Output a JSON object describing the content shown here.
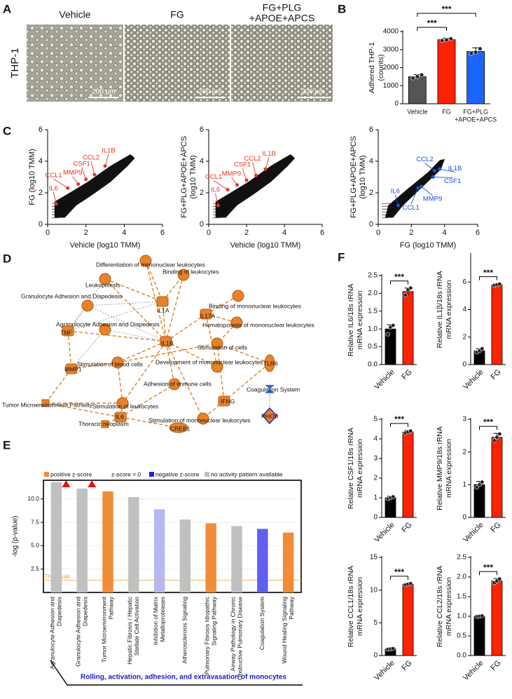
{
  "panel_labels": [
    "A",
    "B",
    "C",
    "D",
    "E",
    "F"
  ],
  "panel_a": {
    "row_label": "THP-1",
    "images": [
      {
        "title": [
          "Vehicle"
        ],
        "scale_bar": "200 µm"
      },
      {
        "title": [
          "FG"
        ],
        "scale_bar": "200 µm"
      },
      {
        "title": [
          "FG+PLG",
          "+APOE+APCS"
        ],
        "scale_bar": "200 µm"
      }
    ]
  },
  "network": {
    "nodes": [
      "Differentiation of mononuclear leukocytes",
      "Leukopoiesis",
      "Binding of leukocytes",
      "Granulocyte Adhesion and Diapedesis",
      "IL1A",
      "Binding of mononuclear leukocytes",
      "IL17A",
      "Hematopoiesis of mononuclear leukocytes",
      "Agranulocyte Adhesion and Diapedesis",
      "TNF",
      "IL1B",
      "Stimulation of cells",
      "MMP1",
      "Stimulation of blood cells",
      "Development of mononuclear leukocytes",
      "TLR6",
      "Adhesion of immune cells",
      "Coagulation System",
      "Tumor Microenvironment Pathway",
      "IFNG",
      "Stimulation of leukocytes",
      "IL6",
      "Stimulation of mononuclear leukocytes",
      "RHOB",
      "Thoracic neoplasm",
      "CREB1"
    ]
  },
  "chart_data": [
    {
      "type": "bar",
      "y_label": [
        "Adhered THP-1",
        "(counts)"
      ],
      "categories": [
        [
          "Vehicle"
        ],
        [
          "FG"
        ],
        [
          "FG+PLG",
          "+APOE+APCS"
        ]
      ],
      "values": [
        1500,
        3550,
        2900
      ],
      "errors": [
        110,
        80,
        200
      ],
      "points": [
        [
          1420,
          1500,
          1600
        ],
        [
          3500,
          3530,
          3600
        ],
        [
          2780,
          2850,
          3050
        ]
      ],
      "colors": [
        "#555555",
        "#ff2200",
        "#1a66ff"
      ],
      "ylim": [
        0,
        4000
      ],
      "yticks": [
        0,
        1000,
        2000,
        3000,
        4000
      ],
      "brackets": [
        "***",
        "***"
      ]
    },
    {
      "type": "scatter",
      "x_label": "Vehicle (log10 TMM)",
      "y_label": [
        "FG (log10 TMM)"
      ],
      "xlim": [
        0,
        6
      ],
      "ylim": [
        0,
        6
      ],
      "xticks": [
        0,
        2,
        4,
        6
      ],
      "yticks": [
        0,
        2,
        4,
        6
      ],
      "color": "#e8351e",
      "labels": [
        "IL1B",
        "CCL2",
        "CSF1",
        "MMP9",
        "CCL1",
        "IL6"
      ],
      "x": [
        3.0,
        2.45,
        2.0,
        1.6,
        1.05,
        0.45
      ],
      "y": [
        3.7,
        3.15,
        2.85,
        2.55,
        2.3,
        1.3
      ]
    },
    {
      "type": "scatter",
      "x_label": "Vehicle (log10 TMM)",
      "y_label": [
        "FG+PLG+APOE+APCS",
        "(log10 TMM)"
      ],
      "xlim": [
        0,
        6
      ],
      "ylim": [
        0,
        6
      ],
      "xticks": [
        0,
        2,
        4,
        6
      ],
      "yticks": [
        0,
        2,
        4,
        6
      ],
      "color": "#e8351e",
      "labels": [
        "IL1B",
        "CCL2",
        "CSF1",
        "MMP9",
        "CCL1",
        "IL6"
      ],
      "x": [
        3.0,
        2.5,
        2.0,
        1.5,
        1.0,
        0.5
      ],
      "y": [
        3.5,
        3.1,
        2.8,
        2.5,
        2.2,
        1.2
      ]
    },
    {
      "type": "scatter",
      "x_label": "FG (log10 TMM)",
      "y_label": [
        "FG+PLG+APOE+APCS",
        "(log10 TMM)"
      ],
      "xlim": [
        0,
        6
      ],
      "ylim": [
        0,
        6
      ],
      "xticks": [
        0,
        2,
        4,
        6
      ],
      "yticks": [
        0,
        2,
        4,
        6
      ],
      "color": "#1a4fe0",
      "labels": [
        "IL1B",
        "CCL2",
        "CSF1",
        "MMP9",
        "CCL1",
        "IL6"
      ],
      "x": [
        3.7,
        3.4,
        3.3,
        2.6,
        2.4,
        1.2
      ],
      "y": [
        3.5,
        3.4,
        3.0,
        2.4,
        2.3,
        1.2
      ]
    },
    {
      "type": "bar",
      "y_label": "-log (p-value)",
      "legend": [
        {
          "name": "positive z-score",
          "color": "#f08c3a"
        },
        {
          "name": "z-score = 0",
          "color": "#ffffff"
        },
        {
          "name": "negative z-score",
          "color": "#2222dd"
        },
        {
          "name": "no activity pattern available",
          "color": "#c0c0c0"
        }
      ],
      "categories": [
        [
          "Agranulocyte Adhesion and",
          "Diapedesis"
        ],
        [
          "Granulocyte Adhesion and",
          "Diapedesis"
        ],
        [
          "Tumor Microenvironment",
          "Pathway"
        ],
        [
          "Hepatic Fibrosis / Hepatic",
          "Stellate Cell Activation"
        ],
        [
          "Inhibition of Matrix",
          "Metalloproteases"
        ],
        [
          "Atherosclerosis Signaling"
        ],
        [
          "Pulmonary Fibrosis Idiopathic",
          "Signaling Pathway"
        ],
        [
          "Airway Pathology in Chronic",
          "Obstructive Pulmonary Disease"
        ],
        [
          "Coagulation System"
        ],
        [
          "Wound Healing Signaling",
          "Pathway"
        ]
      ],
      "values": [
        11.8,
        11.1,
        10.8,
        10.2,
        8.9,
        7.8,
        7.4,
        7.1,
        6.8,
        6.4
      ],
      "colors": [
        "#c0c0c0",
        "#c0c0c0",
        "#f08c3a",
        "#c0c0c0",
        "#b8b8f0",
        "#c0c0c0",
        "#f08c3a",
        "#c0c0c0",
        "#6060f0",
        "#f08c3a"
      ],
      "ylim": [
        0,
        12
      ],
      "yticks": [
        2.5,
        {
          "value": 5,
          "label": "5.0"
        },
        7.5,
        {
          "value": 10,
          "label": "10.0"
        }
      ],
      "threshold": {
        "value": 1.3,
        "label": "Threshold"
      },
      "bracket_label": "Rolling, activation, adhesion, and extravasation of monocytes"
    },
    {
      "type": "bar",
      "y_label": [
        "Relative IL6/18s rRNA",
        "mRNA expression"
      ],
      "categories": [
        "Vehicle",
        "FG"
      ],
      "values": [
        1,
        2.05
      ],
      "errors": [
        0.12,
        0.1
      ],
      "points": [
        [
          0.85,
          1.05,
          1.1
        ],
        [
          1.95,
          2.1,
          2.15
        ]
      ],
      "colors": [
        "#000000",
        "#ff2200"
      ],
      "ylim": [
        0,
        2.5
      ],
      "yticks": [
        {
          "value": 0,
          "label": "0.0"
        },
        0.5,
        {
          "value": 1,
          "label": "1.0"
        },
        1.5,
        {
          "value": 2,
          "label": "2.0"
        },
        2.5
      ],
      "significance": "***"
    },
    {
      "type": "bar",
      "y_label": [
        "Relative IL1β/18s rRNA",
        "mRNA expression"
      ],
      "categories": [
        "Vehicle",
        "FG"
      ],
      "values": [
        1,
        5.8
      ],
      "errors": [
        0.15,
        0.08
      ],
      "points": [
        [
          0.9,
          1.0,
          1.15
        ],
        [
          5.75,
          5.8,
          5.85
        ]
      ],
      "colors": [
        "#000000",
        "#ff2200"
      ],
      "ylim": [
        0,
        8
      ],
      "yticks": [
        0,
        2,
        4,
        6
      ],
      "significance": "***"
    },
    {
      "type": "bar",
      "y_label": [
        "Relative CSF1/18s rRNA",
        "mRNA expression"
      ],
      "categories": [
        "Vehicle",
        "FG"
      ],
      "values": [
        1,
        4.35
      ],
      "errors": [
        0.08,
        0.08
      ],
      "points": [
        [
          0.95,
          1.0,
          1.05
        ],
        [
          4.3,
          4.35,
          4.4
        ]
      ],
      "colors": [
        "#000000",
        "#ff2200"
      ],
      "ylim": [
        0,
        5
      ],
      "yticks": [
        0,
        1,
        2,
        3,
        4,
        5
      ],
      "significance": "***"
    },
    {
      "type": "bar",
      "y_label": [
        "Relative MMP9/18s rRNA",
        "mRNA expression"
      ],
      "categories": [
        "Vehicle",
        "FG"
      ],
      "values": [
        1,
        2.45
      ],
      "errors": [
        0.1,
        0.12
      ],
      "points": [
        [
          0.92,
          1.0,
          1.08
        ],
        [
          2.35,
          2.45,
          2.55
        ]
      ],
      "colors": [
        "#000000",
        "#ff2200"
      ],
      "ylim": [
        0,
        3
      ],
      "yticks": [
        0,
        1,
        2,
        3
      ],
      "significance": "***"
    },
    {
      "type": "bar",
      "y_label": [
        "Relative CCL1/18s rRNA",
        "mRNA expression"
      ],
      "categories": [
        "Vehicle",
        "FG"
      ],
      "values": [
        1,
        10.9
      ],
      "errors": [
        0.1,
        0.15
      ],
      "points": [
        [
          0.95,
          1.0,
          1.05
        ],
        [
          10.8,
          10.9,
          11.0
        ]
      ],
      "colors": [
        "#000000",
        "#ff2200"
      ],
      "ylim": [
        0,
        15
      ],
      "yticks": [
        0,
        5,
        10,
        15
      ],
      "significance": "***"
    },
    {
      "type": "bar",
      "y_label": [
        "Relative CCL2/18s rRNA",
        "mRNA expression"
      ],
      "categories": [
        "Vehicle",
        "FG"
      ],
      "values": [
        1,
        1.9
      ],
      "errors": [
        0.02,
        0.06
      ],
      "points": [
        [
          0.99,
          1.0,
          1.01
        ],
        [
          1.85,
          1.9,
          1.95
        ]
      ],
      "colors": [
        "#000000",
        "#ff2200"
      ],
      "ylim": [
        0,
        2.5
      ],
      "yticks": [
        {
          "value": 0,
          "label": "0.0"
        },
        0.5,
        {
          "value": 1,
          "label": "1.0"
        },
        1.5,
        {
          "value": 2,
          "label": "2.0"
        },
        2.5
      ],
      "significance": "***"
    }
  ]
}
